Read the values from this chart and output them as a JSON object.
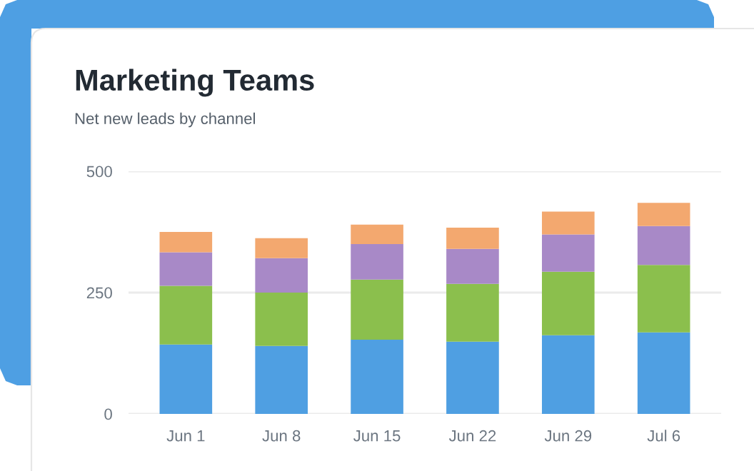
{
  "chart_data": {
    "type": "bar",
    "title": "Marketing Teams",
    "subtitle": "Net new leads by channel",
    "categories": [
      "Jun 1",
      "Jun 8",
      "Jun 15",
      "Jun 22",
      "Jun 29",
      "Jul 6"
    ],
    "stacked": true,
    "series": [
      {
        "color": "#4f9fe2",
        "values": [
          143,
          140,
          153,
          149,
          162,
          168
        ]
      },
      {
        "color": "#8bbf4d",
        "values": [
          121,
          110,
          124,
          119,
          131,
          139
        ]
      },
      {
        "color": "#a889c7",
        "values": [
          69,
          71,
          73,
          72,
          77,
          80
        ]
      },
      {
        "color": "#f3a86f",
        "values": [
          42,
          41,
          40,
          44,
          47,
          48
        ]
      }
    ],
    "ylim": [
      0,
      500
    ],
    "yticks": [
      0,
      250,
      500
    ],
    "grid": "y"
  }
}
